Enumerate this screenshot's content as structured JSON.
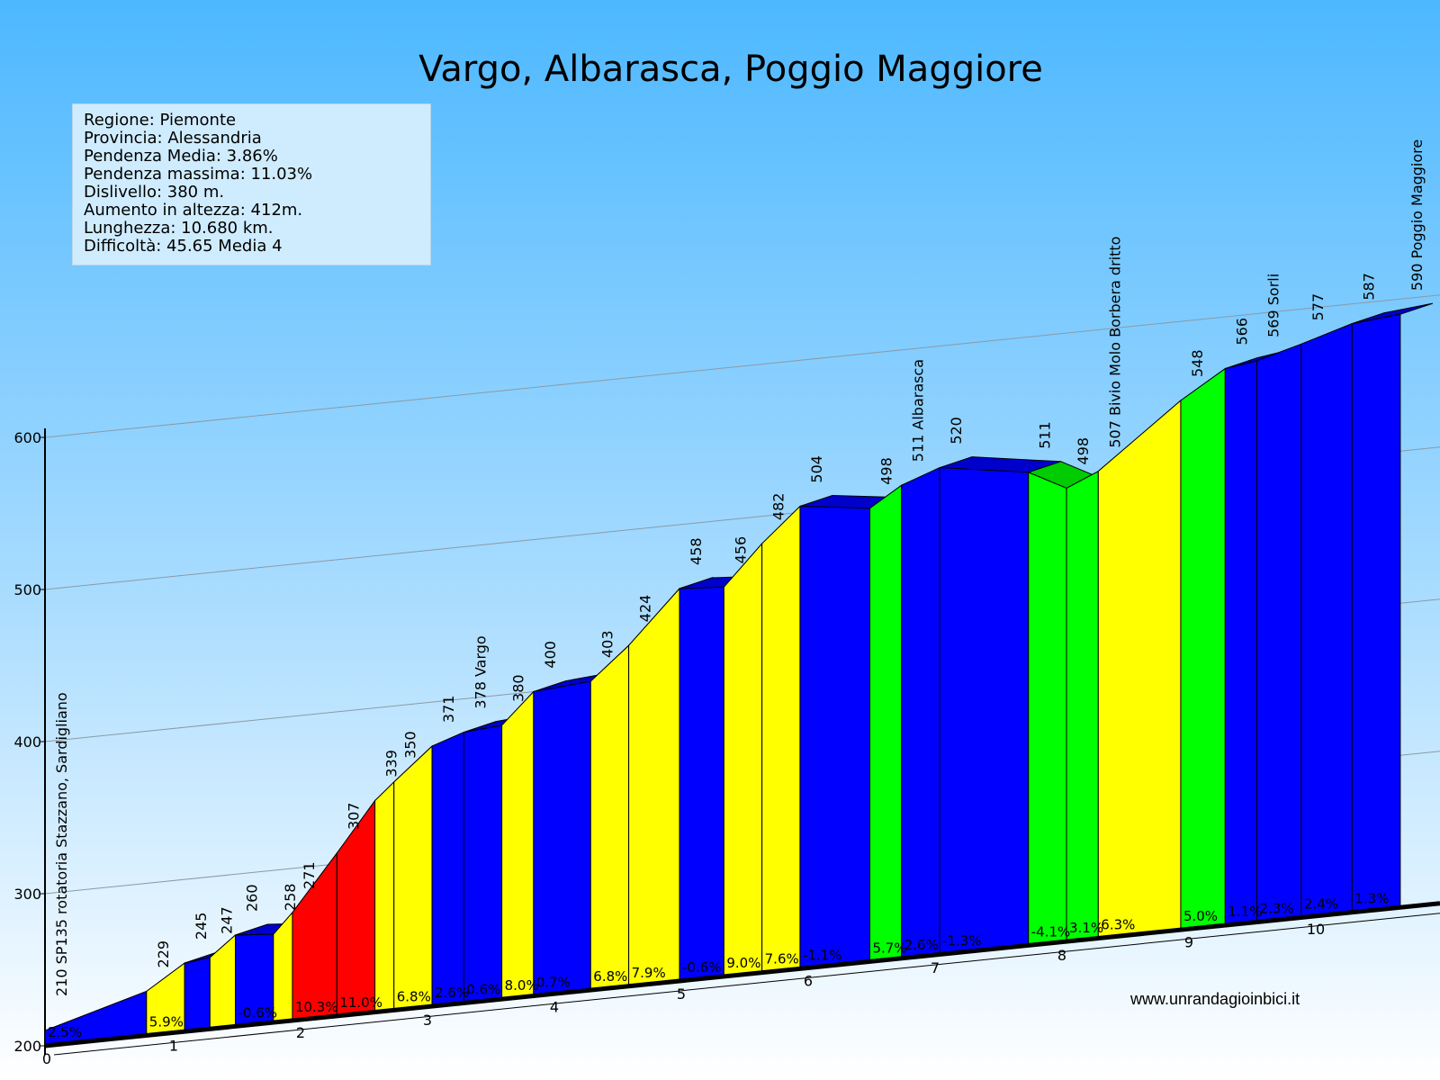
{
  "title": "Vargo, Albarasca, Poggio Maggiore",
  "info": {
    "lines": [
      "Regione: Piemonte",
      "Provincia: Alessandria",
      "Pendenza Media: 3.86%",
      "Pendenza massima: 11.03%",
      "Dislivello: 380 m.",
      "Aumento in altezza: 412m.",
      "Lunghezza:  10.680 km.",
      "Difficoltà: 45.65 Media 4"
    ]
  },
  "website": "www.unrandagioinbici.it",
  "chart_data": {
    "type": "area",
    "title": "Vargo, Albarasca, Poggio Maggiore",
    "xlabel": "",
    "ylabel": "",
    "y_ticks": [
      200,
      300,
      400,
      500,
      600
    ],
    "ylim": [
      200,
      600
    ],
    "x_ticks": [
      0,
      1,
      2,
      3,
      4,
      5,
      6,
      7,
      8,
      9,
      10
    ],
    "xlim": [
      0,
      10.68
    ],
    "colors": {
      "blue": "#0000ff",
      "yellow": "#ffff00",
      "red": "#ff0000",
      "green": "#00ff00",
      "sky_top": "#4db8ff",
      "sky_bottom": "#ffffff"
    },
    "points": [
      {
        "km": 0.0,
        "alt": 210,
        "label": "210 SP135 rotatoria Stazzano, Sardigliano"
      },
      {
        "km": 0.8,
        "alt": 229,
        "label": "229"
      },
      {
        "km": 1.1,
        "alt": 245,
        "label": "245"
      },
      {
        "km": 1.3,
        "alt": 247,
        "label": "247"
      },
      {
        "km": 1.5,
        "alt": 260,
        "label": "260"
      },
      {
        "km": 1.8,
        "alt": 258,
        "label": "258"
      },
      {
        "km": 1.95,
        "alt": 271,
        "label": "271"
      },
      {
        "km": 2.3,
        "alt": 307,
        "label": "307"
      },
      {
        "km": 2.6,
        "alt": 339,
        "label": "339"
      },
      {
        "km": 2.75,
        "alt": 350,
        "label": "350"
      },
      {
        "km": 3.05,
        "alt": 371,
        "label": "371"
      },
      {
        "km": 3.3,
        "alt": 378,
        "label": "378 Vargo"
      },
      {
        "km": 3.6,
        "alt": 380,
        "label": "380"
      },
      {
        "km": 3.85,
        "alt": 400,
        "label": "400"
      },
      {
        "km": 4.3,
        "alt": 403,
        "label": "403"
      },
      {
        "km": 4.6,
        "alt": 424,
        "label": "424"
      },
      {
        "km": 5.0,
        "alt": 458,
        "label": "458"
      },
      {
        "km": 5.35,
        "alt": 456,
        "label": "456"
      },
      {
        "km": 5.65,
        "alt": 482,
        "label": "482"
      },
      {
        "km": 5.95,
        "alt": 504,
        "label": "504"
      },
      {
        "km": 6.5,
        "alt": 498,
        "label": "498"
      },
      {
        "km": 6.75,
        "alt": 511,
        "label": "511 Albarasca"
      },
      {
        "km": 7.05,
        "alt": 520,
        "label": "520"
      },
      {
        "km": 7.75,
        "alt": 511,
        "label": "511"
      },
      {
        "km": 8.05,
        "alt": 498,
        "label": "498"
      },
      {
        "km": 8.3,
        "alt": 507,
        "label": "507 Bivio Molo Borbera dritto"
      },
      {
        "km": 8.95,
        "alt": 548,
        "label": "548"
      },
      {
        "km": 9.3,
        "alt": 566,
        "label": "566"
      },
      {
        "km": 9.55,
        "alt": 569,
        "label": "569 Sorli"
      },
      {
        "km": 9.9,
        "alt": 577,
        "label": "577"
      },
      {
        "km": 10.3,
        "alt": 587,
        "label": "587"
      },
      {
        "km": 10.68,
        "alt": 590,
        "label": "590 Poggio Maggiore"
      }
    ],
    "segments": [
      {
        "grade": "2.5%",
        "color": "blue"
      },
      {
        "grade": "5.9%",
        "color": "yellow"
      },
      {
        "grade": "",
        "color": "blue"
      },
      {
        "grade": "",
        "color": "yellow"
      },
      {
        "grade": "-0.6%",
        "color": "blue"
      },
      {
        "grade": "",
        "color": "yellow"
      },
      {
        "grade": "10.3%",
        "color": "red"
      },
      {
        "grade": "11.0%",
        "color": "red"
      },
      {
        "grade": "",
        "color": "yellow"
      },
      {
        "grade": "6.8%",
        "color": "yellow"
      },
      {
        "grade": "2.6%",
        "color": "blue"
      },
      {
        "grade": "0.6%",
        "color": "blue"
      },
      {
        "grade": "8.0%",
        "color": "yellow"
      },
      {
        "grade": "0.7%",
        "color": "blue"
      },
      {
        "grade": "6.8%",
        "color": "yellow"
      },
      {
        "grade": "7.9%",
        "color": "yellow"
      },
      {
        "grade": "-0.6%",
        "color": "blue"
      },
      {
        "grade": "9.0%",
        "color": "yellow"
      },
      {
        "grade": "7.6%",
        "color": "yellow"
      },
      {
        "grade": "-1.1%",
        "color": "blue"
      },
      {
        "grade": "5.7%",
        "color": "green"
      },
      {
        "grade": "2.6%",
        "color": "blue"
      },
      {
        "grade": "-1.3%",
        "color": "blue"
      },
      {
        "grade": "-4.1%",
        "color": "green"
      },
      {
        "grade": "3.1%",
        "color": "green"
      },
      {
        "grade": "6.3%",
        "color": "yellow"
      },
      {
        "grade": "5.0%",
        "color": "green"
      },
      {
        "grade": "1.1%",
        "color": "blue"
      },
      {
        "grade": "2.3%",
        "color": "blue"
      },
      {
        "grade": "2.4%",
        "color": "blue"
      },
      {
        "grade": "1.3%",
        "color": "blue"
      }
    ]
  }
}
